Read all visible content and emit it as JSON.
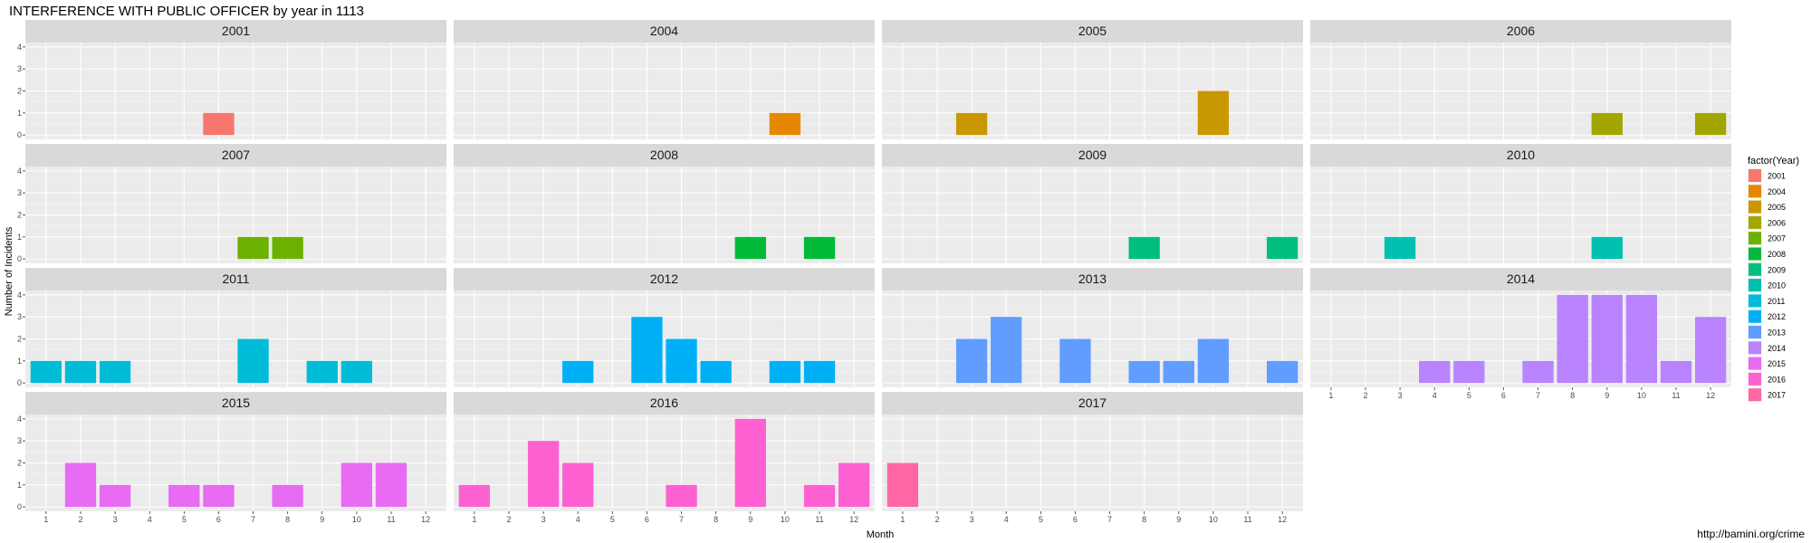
{
  "chart_data": {
    "type": "bar",
    "title": "INTERFERENCE WITH PUBLIC OFFICER by year in 1113",
    "xlabel": "Month",
    "ylabel": "Number of Incidents",
    "x": [
      1,
      2,
      3,
      4,
      5,
      6,
      7,
      8,
      9,
      10,
      11,
      12
    ],
    "ylim": [
      0,
      4
    ],
    "yticks": [
      0,
      1,
      2,
      3,
      4
    ],
    "grid": true,
    "legend_title": "factor(Year)",
    "legend_position": "right",
    "caption": "http://bamini.org/crime",
    "colors": {
      "2001": "#F8766D",
      "2004": "#E58700",
      "2005": "#C99800",
      "2006": "#A3A500",
      "2007": "#6BB100",
      "2008": "#00BA38",
      "2009": "#00BF7D",
      "2010": "#00C0AF",
      "2011": "#00BCD8",
      "2012": "#00B0F6",
      "2013": "#619CFF",
      "2014": "#B983FF",
      "2015": "#E76BF3",
      "2016": "#FD61D1",
      "2017": "#FF67A4"
    },
    "panel_background": "#EBEBEB",
    "strip_background": "#D9D9D9",
    "series": [
      {
        "name": "2001",
        "values": [
          0,
          0,
          0,
          0,
          0,
          1,
          0,
          0,
          0,
          0,
          0,
          0
        ]
      },
      {
        "name": "2004",
        "values": [
          0,
          0,
          0,
          0,
          0,
          0,
          0,
          0,
          0,
          1,
          0,
          0
        ]
      },
      {
        "name": "2005",
        "values": [
          0,
          0,
          1,
          0,
          0,
          0,
          0,
          0,
          0,
          2,
          0,
          0
        ]
      },
      {
        "name": "2006",
        "values": [
          0,
          0,
          0,
          0,
          0,
          0,
          0,
          0,
          1,
          0,
          0,
          1
        ]
      },
      {
        "name": "2007",
        "values": [
          0,
          0,
          0,
          0,
          0,
          0,
          1,
          1,
          0,
          0,
          0,
          0
        ]
      },
      {
        "name": "2008",
        "values": [
          0,
          0,
          0,
          0,
          0,
          0,
          0,
          0,
          1,
          0,
          1,
          0
        ]
      },
      {
        "name": "2009",
        "values": [
          0,
          0,
          0,
          0,
          0,
          0,
          0,
          1,
          0,
          0,
          0,
          1
        ]
      },
      {
        "name": "2010",
        "values": [
          0,
          0,
          1,
          0,
          0,
          0,
          0,
          0,
          1,
          0,
          0,
          0
        ]
      },
      {
        "name": "2011",
        "values": [
          1,
          1,
          1,
          0,
          0,
          0,
          2,
          0,
          1,
          1,
          0,
          0
        ]
      },
      {
        "name": "2012",
        "values": [
          0,
          0,
          0,
          1,
          0,
          3,
          2,
          1,
          0,
          1,
          1,
          0
        ]
      },
      {
        "name": "2013",
        "values": [
          0,
          0,
          2,
          3,
          0,
          2,
          0,
          1,
          1,
          2,
          0,
          1
        ]
      },
      {
        "name": "2014",
        "values": [
          0,
          0,
          0,
          1,
          1,
          0,
          1,
          4,
          4,
          4,
          1,
          3
        ]
      },
      {
        "name": "2015",
        "values": [
          0,
          2,
          1,
          0,
          1,
          1,
          0,
          1,
          0,
          2,
          2,
          0
        ]
      },
      {
        "name": "2016",
        "values": [
          1,
          0,
          3,
          2,
          0,
          0,
          1,
          0,
          4,
          0,
          1,
          2
        ]
      },
      {
        "name": "2017",
        "values": [
          2,
          0,
          0,
          0,
          0,
          0,
          0,
          0,
          0,
          0,
          0,
          0
        ]
      }
    ]
  }
}
